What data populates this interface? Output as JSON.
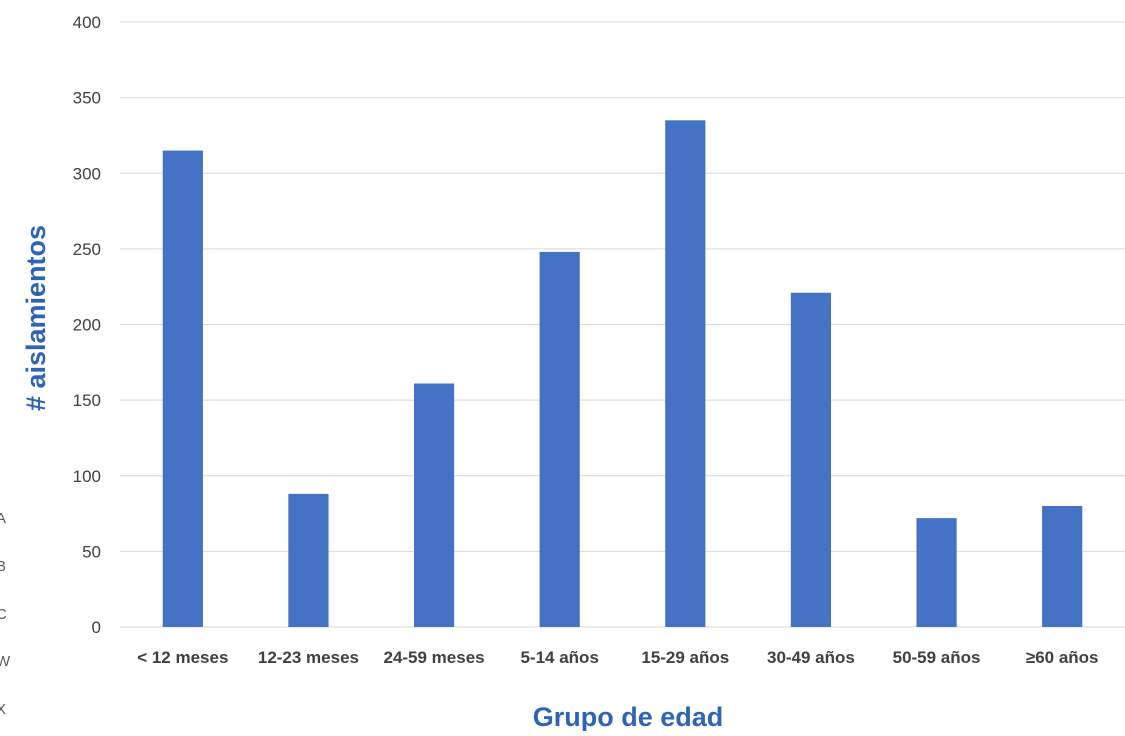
{
  "chart_data": {
    "type": "bar",
    "title": "",
    "xlabel": "Grupo de edad",
    "ylabel": "# aislamientos",
    "categories": [
      "< 12 meses",
      "12-23 meses",
      "24-59 meses",
      "5-14 años",
      "15-29 años",
      "30-49 años",
      "50-59 años",
      "≥60 años"
    ],
    "values": [
      315,
      88,
      161,
      248,
      335,
      221,
      72,
      80
    ],
    "ylim": [
      0,
      400
    ],
    "yticks": [
      0,
      50,
      100,
      150,
      200,
      250,
      300,
      350,
      400
    ],
    "grid": true,
    "legend": "none",
    "colors": {
      "bar": "#4472c4",
      "axis_title": "#2e64b8"
    }
  },
  "edge_labels": [
    "A",
    "B",
    "C",
    "W",
    "X"
  ]
}
